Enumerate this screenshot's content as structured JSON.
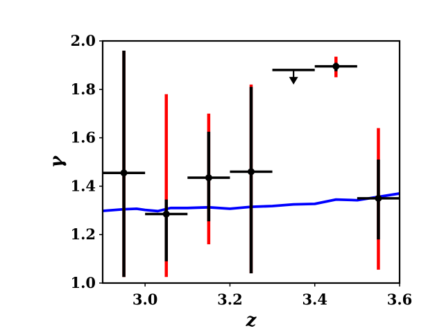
{
  "chart_data": {
    "type": "scatter",
    "xlabel": "z",
    "ylabel": "γ",
    "xlim": [
      2.9,
      3.6
    ],
    "ylim": [
      1.0,
      2.0
    ],
    "x_ticks": [
      3.0,
      3.2,
      3.4,
      3.6
    ],
    "x_tick_labels": [
      "3.0",
      "3.2",
      "3.4",
      "3.6"
    ],
    "y_ticks": [
      1.0,
      1.2,
      1.4,
      1.6,
      1.8,
      2.0
    ],
    "y_tick_labels": [
      "1.0",
      "1.2",
      "1.4",
      "1.6",
      "1.8",
      "2.0"
    ],
    "grid": false,
    "colors": {
      "points": "#000000",
      "total_error": "#ff0000",
      "model_line": "#0000ff"
    },
    "points": [
      {
        "x": 2.95,
        "x_err": 0.05,
        "y": 1.455,
        "stat_err": [
          1.025,
          1.96
        ],
        "total_err": [
          1.025,
          1.96
        ]
      },
      {
        "x": 3.05,
        "x_err": 0.05,
        "y": 1.285,
        "stat_err": [
          1.09,
          1.345
        ],
        "total_err": [
          1.025,
          1.78
        ]
      },
      {
        "x": 3.15,
        "x_err": 0.05,
        "y": 1.435,
        "stat_err": [
          1.255,
          1.625
        ],
        "total_err": [
          1.16,
          1.7
        ]
      },
      {
        "x": 3.25,
        "x_err": 0.05,
        "y": 1.46,
        "stat_err": [
          1.04,
          1.81
        ],
        "total_err": [
          1.04,
          1.82
        ]
      },
      {
        "x": 3.45,
        "x_err": 0.05,
        "y": 1.895,
        "stat_err": [
          1.875,
          1.91
        ],
        "total_err": [
          1.85,
          1.935
        ]
      },
      {
        "x": 3.55,
        "x_err": 0.05,
        "y": 1.35,
        "stat_err": [
          1.18,
          1.51
        ],
        "total_err": [
          1.055,
          1.64
        ]
      }
    ],
    "upper_limits": [
      {
        "x": 3.35,
        "x_err": 0.05,
        "y": 1.88,
        "arrow_to": 1.82
      }
    ],
    "model_line": {
      "x": [
        2.9,
        2.95,
        2.98,
        3.0,
        3.03,
        3.06,
        3.1,
        3.15,
        3.2,
        3.25,
        3.3,
        3.35,
        3.4,
        3.45,
        3.5,
        3.55,
        3.6
      ],
      "y": [
        1.298,
        1.305,
        1.307,
        1.302,
        1.297,
        1.31,
        1.31,
        1.313,
        1.307,
        1.315,
        1.318,
        1.325,
        1.327,
        1.345,
        1.342,
        1.356,
        1.37
      ]
    }
  }
}
